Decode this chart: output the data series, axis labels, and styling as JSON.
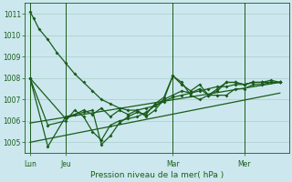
{
  "bg_color": "#cce8ee",
  "grid_color": "#aacccc",
  "line_color": "#1a5c1a",
  "title": "Pression niveau de la mer( hPa )",
  "ylim": [
    1004.5,
    1011.5
  ],
  "yticks": [
    1005,
    1006,
    1007,
    1008,
    1009,
    1010,
    1011
  ],
  "xtick_labels": [
    "Lun",
    "Jeu",
    "Mar",
    "Mer"
  ],
  "xtick_positions": [
    0,
    2,
    8,
    12
  ],
  "vline_positions": [
    0,
    2,
    8,
    12
  ],
  "xlim": [
    -0.3,
    14.5
  ],
  "series1_x": [
    0,
    0.2,
    0.5,
    1.0,
    1.5,
    2.0,
    2.5,
    3.0,
    3.5,
    4.0,
    4.5,
    5.0,
    5.5,
    6.0,
    6.5,
    7.0,
    7.5,
    8.0,
    8.5,
    9.0,
    9.5,
    10.0,
    10.5,
    11.0,
    11.5,
    12.0,
    12.5,
    13.0,
    13.5,
    14.0
  ],
  "series1_y": [
    1011.1,
    1010.8,
    1010.3,
    1009.8,
    1009.2,
    1008.7,
    1008.2,
    1007.8,
    1007.4,
    1007.0,
    1006.8,
    1006.6,
    1006.5,
    1006.5,
    1006.6,
    1006.7,
    1006.9,
    1007.1,
    1007.2,
    1007.3,
    1007.4,
    1007.5,
    1007.6,
    1007.6,
    1007.7,
    1007.7,
    1007.8,
    1007.8,
    1007.9,
    1007.8
  ],
  "series2_x": [
    0,
    2.0,
    2.5,
    3.0,
    3.5,
    4.0,
    4.5,
    5.0,
    5.5,
    6.0,
    6.5,
    7.0,
    7.5,
    8.0,
    8.5,
    9.0,
    9.5,
    10.0,
    10.5,
    11.0,
    11.5,
    12.0,
    12.5,
    13.0,
    13.5,
    14.0
  ],
  "series2_y": [
    1008.0,
    1006.1,
    1006.3,
    1006.5,
    1006.3,
    1006.6,
    1006.2,
    1006.5,
    1006.3,
    1006.5,
    1006.2,
    1006.5,
    1007.0,
    1007.2,
    1007.4,
    1007.3,
    1007.5,
    1007.2,
    1007.2,
    1007.2,
    1007.5,
    1007.5,
    1007.7,
    1007.7,
    1007.8,
    1007.8
  ],
  "series3_x": [
    0,
    1.0,
    2.0,
    2.5,
    3.0,
    3.5,
    4.0,
    4.5,
    5.0,
    5.5,
    6.0,
    6.5,
    7.0,
    7.5,
    8.0,
    8.5,
    9.0,
    9.5,
    10.0,
    10.5,
    11.0,
    11.5,
    12.0,
    12.5,
    13.0,
    13.5,
    14.0
  ],
  "series3_y": [
    1008.0,
    1005.8,
    1006.0,
    1006.5,
    1006.2,
    1005.5,
    1005.1,
    1005.8,
    1006.0,
    1006.1,
    1006.2,
    1006.4,
    1006.7,
    1007.0,
    1008.1,
    1007.8,
    1007.2,
    1007.0,
    1007.2,
    1007.4,
    1007.8,
    1007.8,
    1007.7,
    1007.8,
    1007.8,
    1007.8,
    1007.8
  ],
  "series4_x": [
    0,
    1.0,
    2.0,
    3.0,
    3.5,
    4.0,
    4.5,
    5.0,
    5.5,
    6.0,
    6.5,
    7.0,
    7.5,
    8.0,
    8.5,
    9.0,
    9.5,
    10.0,
    10.5,
    11.0,
    11.5,
    12.0,
    12.5,
    13.0,
    13.5,
    14.0
  ],
  "series4_y": [
    1008.0,
    1004.8,
    1006.2,
    1006.4,
    1006.5,
    1004.9,
    1005.3,
    1005.9,
    1006.2,
    1006.4,
    1006.3,
    1006.8,
    1007.1,
    1008.1,
    1007.7,
    1007.4,
    1007.7,
    1007.2,
    1007.5,
    1007.8,
    1007.8,
    1007.7,
    1007.8,
    1007.8,
    1007.8,
    1007.8
  ],
  "trend1_x": [
    0,
    14.0
  ],
  "trend1_y": [
    1005.9,
    1007.8
  ],
  "trend2_x": [
    0,
    14.0
  ],
  "trend2_y": [
    1005.0,
    1007.3
  ]
}
